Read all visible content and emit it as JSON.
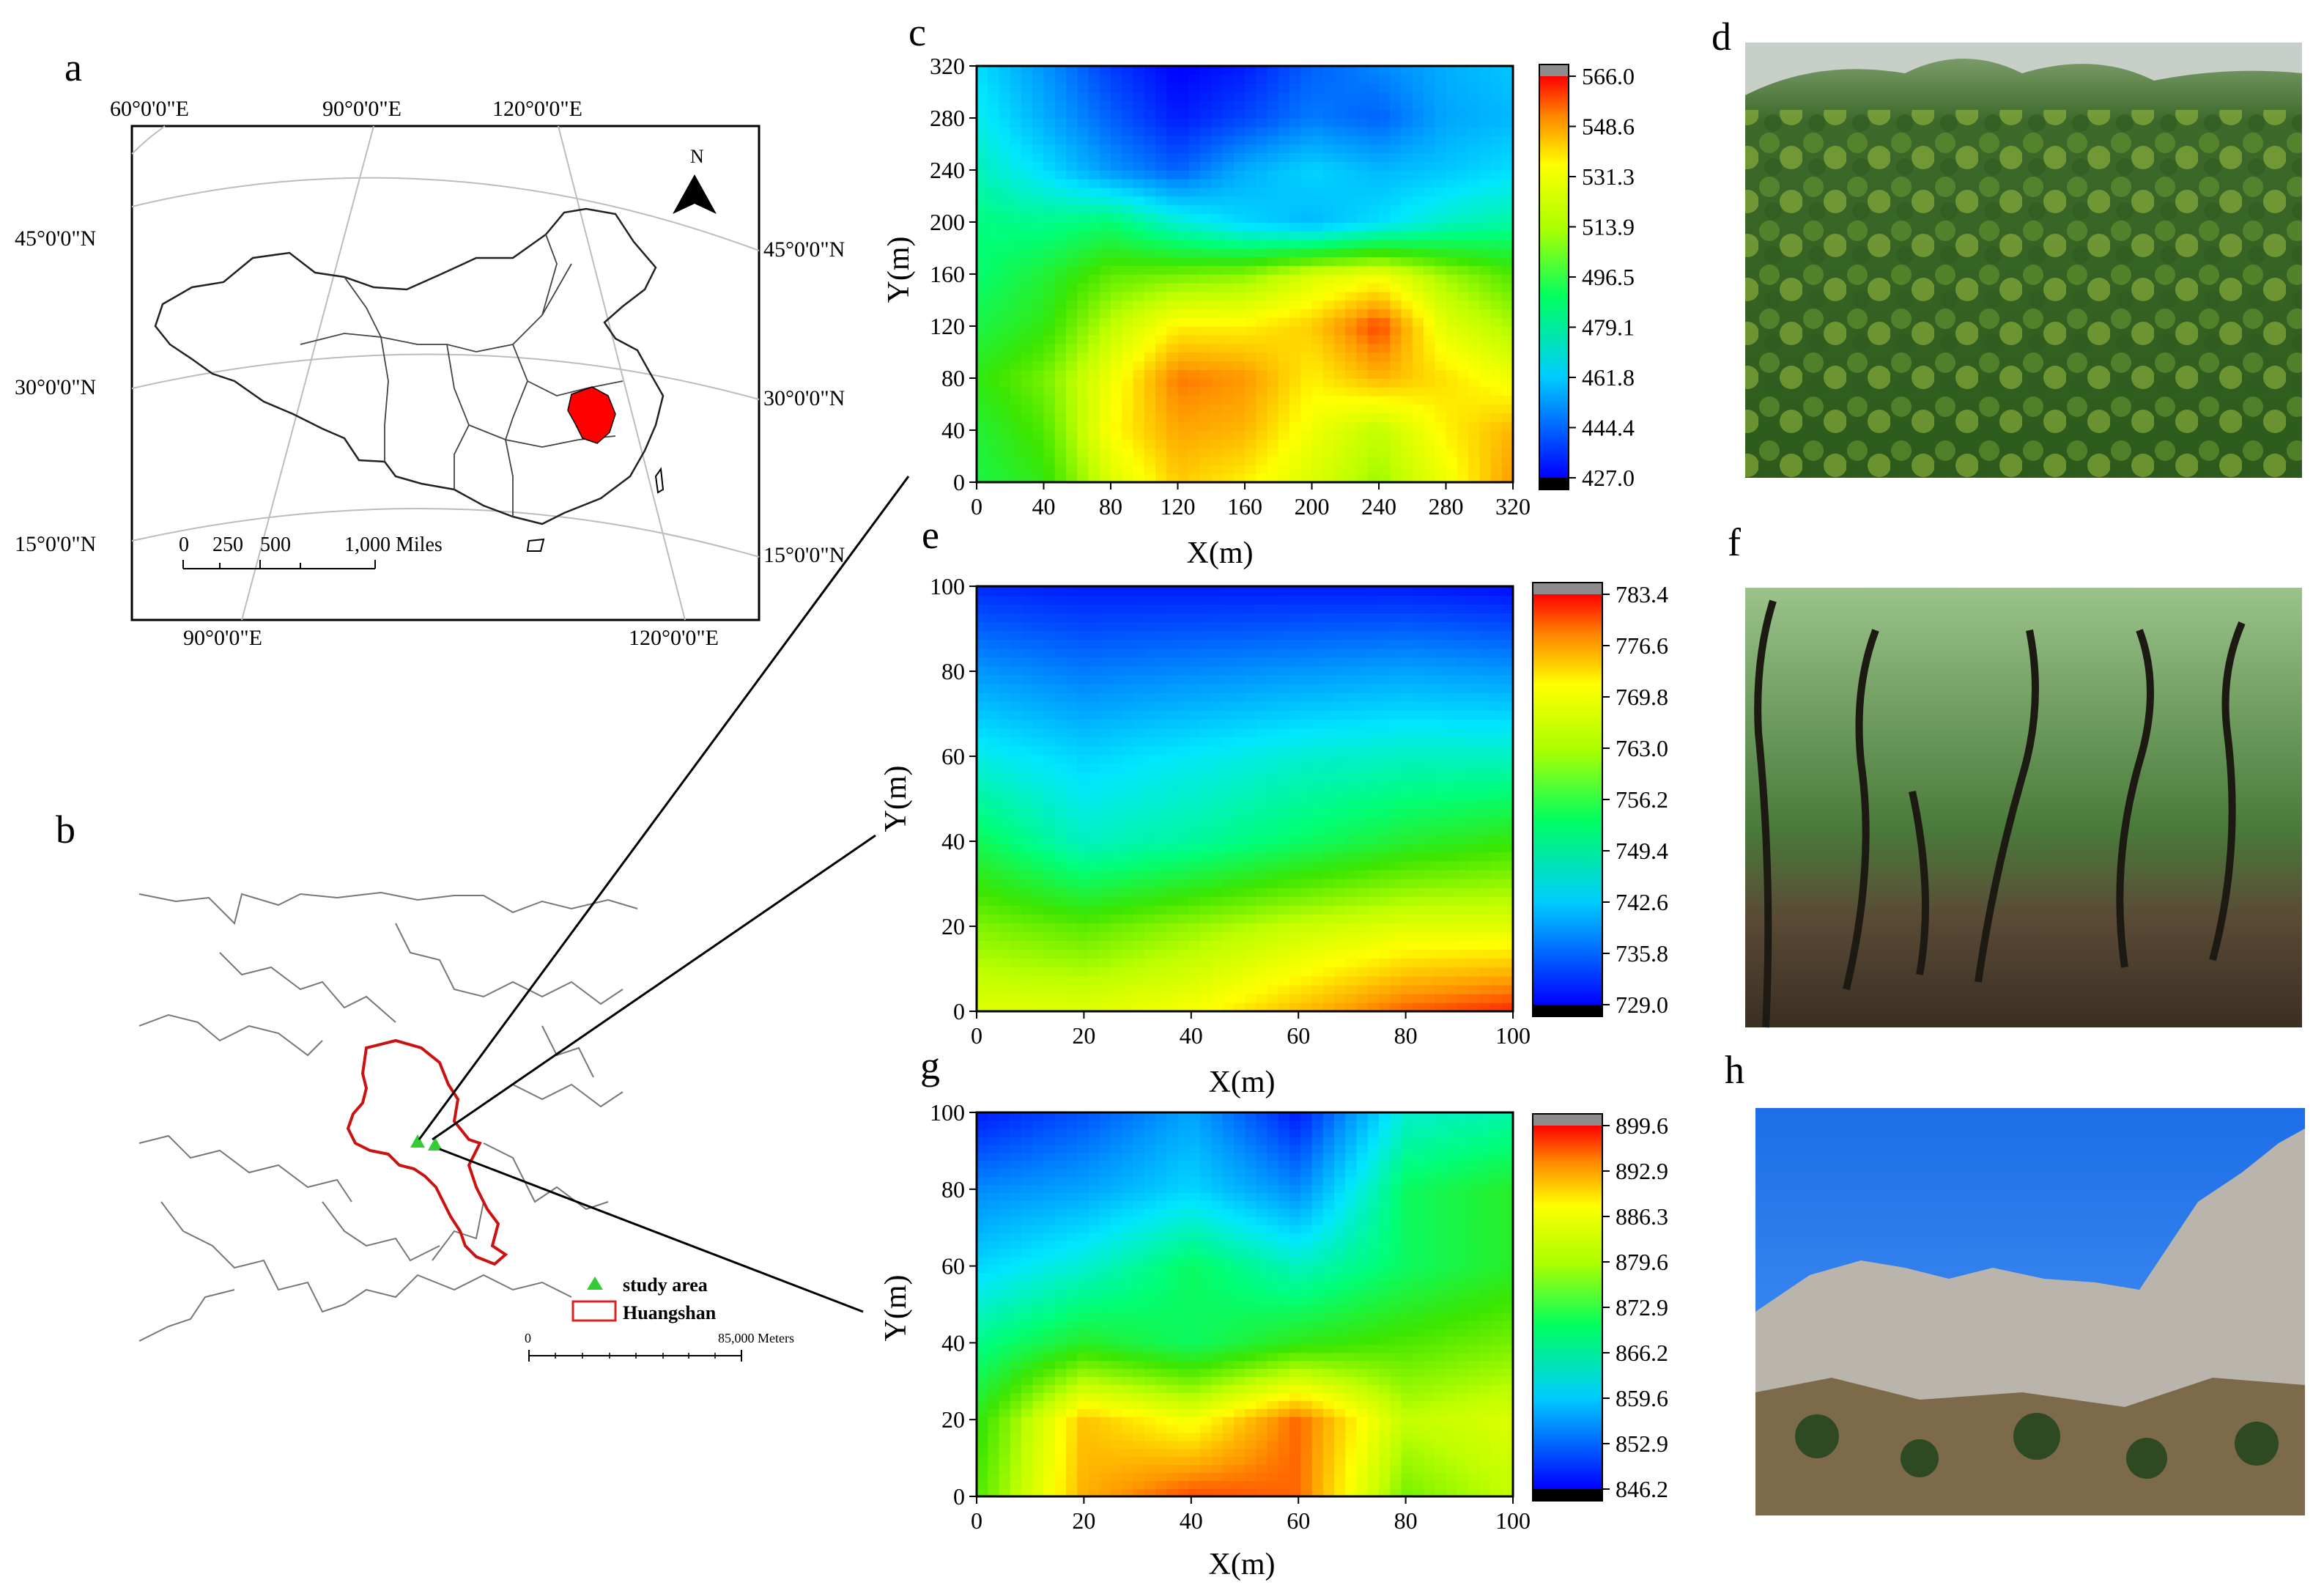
{
  "panels": {
    "a": {
      "letter": "a",
      "lon_labels_top": [
        "60°0'0\"E",
        "90°0'0\"E",
        "120°0'0\"E"
      ],
      "lon_labels_bottom": [
        "90°0'0\"E",
        "120°0'0\"E"
      ],
      "lat_labels_left": [
        "45°0'0\"N",
        "30°0'0\"N",
        "15°0'0\"N"
      ],
      "lat_labels_right": [
        "45°0'0\"N",
        "30°0'0\"N",
        "15°0'0\"N"
      ],
      "north_label": "N",
      "scale_ticks": [
        "0",
        "250",
        "500",
        "1,000 Miles"
      ]
    },
    "b": {
      "letter": "b",
      "legend": [
        {
          "label": "study area",
          "symbol": "triangle",
          "color": "#33cc33"
        },
        {
          "label": "Huangshan",
          "symbol": "rect",
          "color": "#dd2222"
        }
      ],
      "scale_ticks": [
        "0",
        "85,000 Meters"
      ]
    },
    "d": {
      "letter": "d",
      "image": "forest-canopy-photo"
    },
    "f": {
      "letter": "f",
      "image": "forest-understory-photo"
    },
    "h": {
      "letter": "h",
      "image": "rock-cliff-photo"
    }
  },
  "chart_data": [
    {
      "id": "c",
      "letter": "c",
      "type": "heatmap",
      "xlabel": "X(m)",
      "ylabel": "Y(m)",
      "xlim": [
        0,
        320
      ],
      "ylim": [
        0,
        320
      ],
      "x_ticks": [
        0,
        40,
        80,
        120,
        160,
        200,
        240,
        280,
        320
      ],
      "y_ticks": [
        0,
        40,
        80,
        120,
        160,
        200,
        240,
        280,
        320
      ],
      "colorbar_ticks": [
        "427.0",
        "444.4",
        "461.8",
        "479.1",
        "496.5",
        "513.9",
        "531.3",
        "548.6",
        "566.0"
      ],
      "zlim": [
        427.0,
        566.0
      ],
      "grid_x": [
        0,
        40,
        80,
        120,
        160,
        200,
        240,
        280,
        320
      ],
      "grid_y": [
        0,
        40,
        80,
        120,
        160,
        200,
        240,
        280,
        320
      ],
      "z": [
        [
          498,
          505,
          530,
          545,
          540,
          530,
          520,
          535,
          552
        ],
        [
          500,
          510,
          538,
          550,
          548,
          535,
          525,
          540,
          548
        ],
        [
          505,
          515,
          535,
          555,
          552,
          540,
          548,
          542,
          535
        ],
        [
          498,
          505,
          525,
          540,
          540,
          545,
          560,
          532,
          522
        ],
        [
          492,
          500,
          512,
          515,
          518,
          530,
          535,
          520,
          510
        ],
        [
          490,
          488,
          492,
          478,
          468,
          462,
          470,
          480,
          485
        ],
        [
          482,
          470,
          455,
          445,
          460,
          468,
          462,
          465,
          470
        ],
        [
          475,
          460,
          445,
          432,
          440,
          450,
          445,
          458,
          462
        ],
        [
          470,
          455,
          438,
          427,
          432,
          445,
          452,
          460,
          465
        ]
      ]
    },
    {
      "id": "e",
      "letter": "e",
      "type": "heatmap",
      "xlabel": "X(m)",
      "ylabel": "Y(m)",
      "xlim": [
        0,
        100
      ],
      "ylim": [
        0,
        100
      ],
      "x_ticks": [
        0,
        20,
        40,
        60,
        80,
        100
      ],
      "y_ticks": [
        0,
        20,
        40,
        60,
        80,
        100
      ],
      "colorbar_ticks": [
        "729.0",
        "735.8",
        "742.6",
        "749.4",
        "756.2",
        "763.0",
        "769.8",
        "776.6",
        "783.4"
      ],
      "zlim": [
        729.0,
        783.4
      ],
      "grid_x": [
        0,
        20,
        40,
        60,
        80,
        100
      ],
      "grid_y": [
        0,
        20,
        40,
        60,
        80,
        100
      ],
      "z": [
        [
          770,
          770,
          772,
          776,
          780,
          782
        ],
        [
          764,
          762,
          765,
          768,
          770,
          770
        ],
        [
          756,
          750,
          752,
          755,
          758,
          760
        ],
        [
          748,
          745,
          747,
          749,
          750,
          750
        ],
        [
          740,
          738,
          739,
          740,
          741,
          740
        ],
        [
          732,
          731,
          731,
          731,
          731,
          730
        ]
      ]
    },
    {
      "id": "g",
      "letter": "g",
      "type": "heatmap",
      "xlabel": "X(m)",
      "ylabel": "Y(m)",
      "xlim": [
        0,
        100
      ],
      "ylim": [
        0,
        100
      ],
      "x_ticks": [
        0,
        20,
        40,
        60,
        80,
        100
      ],
      "y_ticks": [
        0,
        20,
        40,
        60,
        80,
        100
      ],
      "colorbar_ticks": [
        "846.2",
        "852.9",
        "859.6",
        "866.2",
        "872.9",
        "879.6",
        "886.3",
        "892.9",
        "899.6"
      ],
      "zlim": [
        846.2,
        899.6
      ],
      "grid_x": [
        0,
        20,
        40,
        60,
        80,
        100
      ],
      "grid_y": [
        0,
        20,
        40,
        60,
        80,
        100
      ],
      "z": [
        [
          878,
          893,
          897,
          896,
          880,
          884
        ],
        [
          876,
          892,
          888,
          896,
          884,
          886
        ],
        [
          870,
          875,
          872,
          876,
          878,
          880
        ],
        [
          862,
          866,
          872,
          867,
          872,
          875
        ],
        [
          856,
          858,
          862,
          856,
          872,
          875
        ],
        [
          848,
          852,
          858,
          848,
          866,
          868
        ]
      ]
    }
  ]
}
